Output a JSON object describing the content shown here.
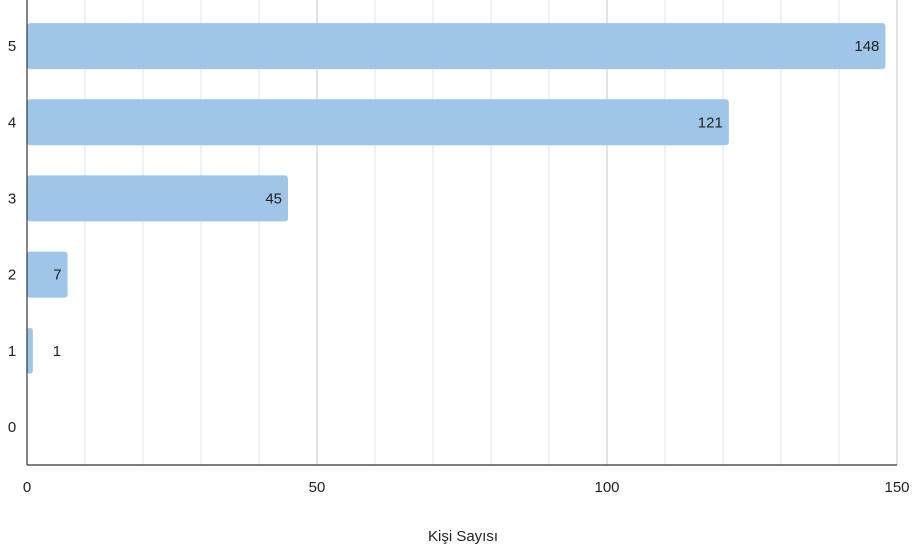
{
  "chart_data": {
    "type": "bar",
    "orientation": "horizontal",
    "categories": [
      "5",
      "4",
      "3",
      "2",
      "1",
      "0"
    ],
    "values": [
      148,
      121,
      45,
      7,
      1,
      0
    ],
    "data_labels": [
      "148",
      "121",
      "45",
      "7",
      "1",
      ""
    ],
    "xlabel": "Kişi Sayısı",
    "ylabel": "",
    "xlim": [
      0,
      150
    ],
    "x_ticks": [
      0,
      50,
      100,
      150
    ],
    "x_tick_labels": [
      "0",
      "50",
      "100",
      "150"
    ],
    "minor_grid_step": 10,
    "grid": true,
    "legend": "none",
    "colors": {
      "bar": "#9fc5e8",
      "grid_major": "#c8c8c8",
      "grid_minor": "#e3e3e3",
      "axis": "#333333",
      "text": "#222222"
    }
  }
}
